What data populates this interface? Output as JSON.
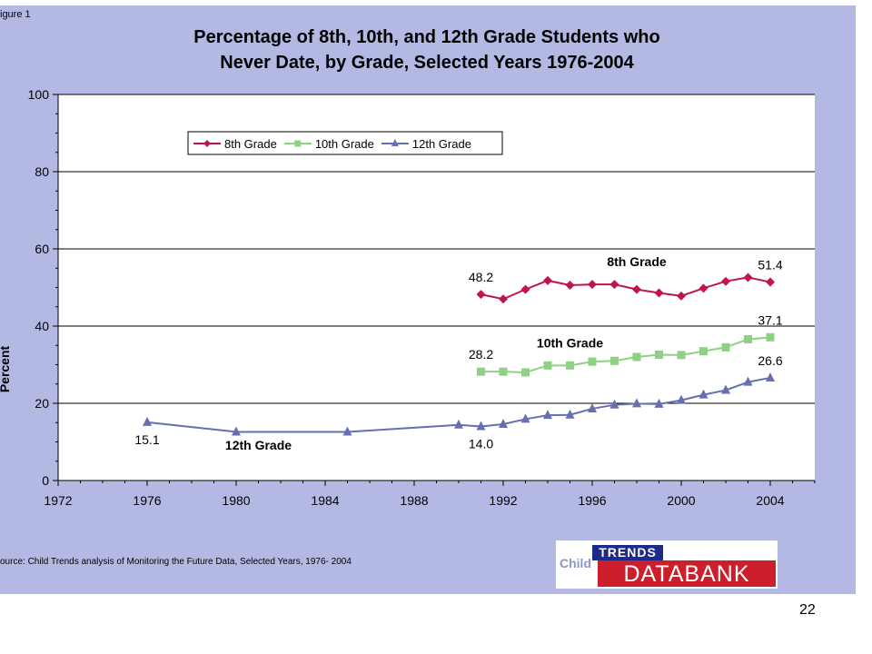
{
  "figure_label": "igure 1",
  "title_line1": "Percentage of 8th, 10th, and 12th Grade Students who",
  "title_line2": "Never Date, by Grade, Selected Years 1976-2004",
  "source": "ource: Child Trends analysis of Monitoring the Future Data, Selected Years, 1976- 2004",
  "logo": {
    "child": "Child",
    "trends": "TRENDS",
    "databank": "DATABANK"
  },
  "page_number": "22",
  "chart_data": {
    "type": "line",
    "title": "Percentage of 8th, 10th, and 12th Grade Students who Never Date, by Grade, Selected Years 1976-2004",
    "xlabel": "",
    "ylabel": "Percent",
    "xlim": [
      1972,
      2006
    ],
    "ylim": [
      0,
      100
    ],
    "xticks": [
      1972,
      1976,
      1980,
      1984,
      1988,
      1992,
      1996,
      2000,
      2004
    ],
    "yticks": [
      0,
      20,
      40,
      60,
      80,
      100
    ],
    "grid": "horizontal major lines",
    "legend": "top",
    "series": [
      {
        "name": "8th Grade",
        "color": "#c0144c",
        "marker": "diamond",
        "x": [
          1991,
          1992,
          1993,
          1994,
          1995,
          1996,
          1997,
          1998,
          1999,
          2000,
          2001,
          2002,
          2003,
          2004
        ],
        "y": [
          48.2,
          47.0,
          49.5,
          51.8,
          50.6,
          50.8,
          50.8,
          49.5,
          48.6,
          47.8,
          49.8,
          51.6,
          52.6,
          51.4
        ]
      },
      {
        "name": "10th Grade",
        "color": "#8fcf86",
        "marker": "square",
        "x": [
          1991,
          1992,
          1993,
          1994,
          1995,
          1996,
          1997,
          1998,
          1999,
          2000,
          2001,
          2002,
          2003,
          2004
        ],
        "y": [
          28.2,
          28.2,
          28.0,
          29.8,
          29.8,
          30.8,
          31.0,
          32.0,
          32.6,
          32.5,
          33.5,
          34.5,
          36.6,
          37.1
        ]
      },
      {
        "name": "12th Grade",
        "color": "#6670b0",
        "marker": "triangle",
        "x": [
          1976,
          1980,
          1985,
          1990,
          1991,
          1992,
          1993,
          1994,
          1995,
          1996,
          1997,
          1998,
          1999,
          2000,
          2001,
          2002,
          2003,
          2004
        ],
        "y": [
          15.1,
          12.6,
          12.6,
          14.4,
          14.0,
          14.6,
          15.9,
          16.9,
          17.0,
          18.6,
          19.6,
          19.9,
          19.8,
          20.8,
          22.2,
          23.4,
          25.5,
          26.6
        ]
      }
    ],
    "annotations": [
      {
        "text": "48.2",
        "x": 1991,
        "y": 48.2,
        "pos": "above"
      },
      {
        "text": "51.4",
        "x": 2004,
        "y": 51.4,
        "pos": "above"
      },
      {
        "text": "8th Grade",
        "x": 1998,
        "y": 55.5,
        "bold": true
      },
      {
        "text": "28.2",
        "x": 1991,
        "y": 28.2,
        "pos": "above"
      },
      {
        "text": "37.1",
        "x": 2004,
        "y": 37.1,
        "pos": "above"
      },
      {
        "text": "10th Grade",
        "x": 1995,
        "y": 34.5,
        "bold": true
      },
      {
        "text": "26.6",
        "x": 2004,
        "y": 26.6,
        "pos": "above"
      },
      {
        "text": "15.1",
        "x": 1976,
        "y": 15.1,
        "pos": "below"
      },
      {
        "text": "14.0",
        "x": 1991,
        "y": 14.0,
        "pos": "below"
      },
      {
        "text": "12th Grade",
        "x": 1981,
        "y": 8,
        "bold": true
      }
    ]
  }
}
